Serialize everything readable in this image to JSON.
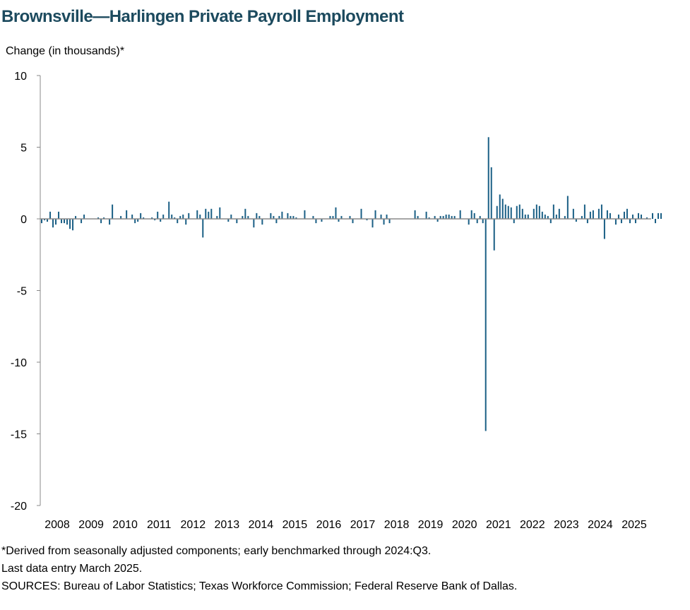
{
  "title": "Brownsville—Harlingen Private Payroll Employment",
  "chart_data": {
    "type": "bar",
    "title": "Brownsville—Harlingen Private Payroll Employment",
    "ylabel": "Change (in thousands)*",
    "xlabel": "",
    "ylim": [
      -20,
      10
    ],
    "yticks": [
      "10",
      "5",
      "0",
      "-5",
      "-10",
      "-15",
      "-20"
    ],
    "ytick_values": [
      10,
      5,
      0,
      -5,
      -10,
      -15,
      -20
    ],
    "xticks": [
      "2008",
      "2009",
      "2010",
      "2011",
      "2012",
      "2013",
      "2014",
      "2015",
      "2016",
      "2017",
      "2018",
      "2019",
      "2020",
      "2021",
      "2022",
      "2023",
      "2024",
      "2025"
    ],
    "frequency": "monthly",
    "start": "2008-01",
    "end": "2025-03",
    "bar_color": "#1a5f85",
    "grid": false,
    "values": [
      -0.3,
      -0.1,
      -0.2,
      0.5,
      -0.6,
      -0.4,
      0.5,
      -0.3,
      -0.3,
      -0.4,
      -0.7,
      -0.8,
      0.2,
      0.0,
      -0.3,
      0.3,
      0.0,
      0.0,
      0.0,
      0.0,
      0.1,
      -0.3,
      0.1,
      0.0,
      -0.4,
      1.0,
      0.0,
      0.0,
      0.2,
      0.0,
      0.6,
      0.0,
      0.3,
      -0.3,
      -0.2,
      0.4,
      0.1,
      0.0,
      0.0,
      0.1,
      -0.1,
      0.5,
      -0.2,
      0.3,
      0.0,
      1.2,
      0.3,
      0.1,
      -0.3,
      0.2,
      0.3,
      -0.4,
      0.4,
      0.0,
      0.0,
      0.6,
      0.3,
      -1.3,
      0.7,
      0.5,
      0.7,
      0.0,
      0.2,
      0.8,
      0.0,
      0.0,
      -0.2,
      0.3,
      0.0,
      -0.3,
      0.0,
      0.2,
      0.7,
      0.2,
      0.0,
      -0.6,
      0.4,
      0.2,
      -0.4,
      0.0,
      0.0,
      0.4,
      0.2,
      -0.3,
      0.2,
      0.5,
      0.0,
      0.4,
      0.2,
      0.2,
      0.1,
      0.0,
      0.0,
      0.6,
      0.0,
      0.0,
      0.2,
      -0.3,
      0.0,
      -0.2,
      0.0,
      0.0,
      0.2,
      0.2,
      0.8,
      -0.2,
      0.2,
      0.0,
      0.0,
      0.2,
      -0.3,
      0.0,
      0.0,
      0.7,
      0.0,
      -0.1,
      0.0,
      -0.6,
      0.6,
      0.0,
      0.3,
      -0.4,
      0.3,
      -0.3,
      0.0,
      0.0,
      0.0,
      0.0,
      0.0,
      0.0,
      0.0,
      0.0,
      0.6,
      0.2,
      0.0,
      0.0,
      0.5,
      0.1,
      0.0,
      0.2,
      -0.2,
      0.2,
      0.2,
      0.3,
      0.3,
      0.2,
      0.2,
      0.0,
      0.6,
      0.0,
      0.0,
      -0.4,
      0.6,
      0.4,
      -0.3,
      0.2,
      -0.3,
      -14.8,
      5.7,
      3.6,
      -2.2,
      0.9,
      1.7,
      1.4,
      1.0,
      0.9,
      0.8,
      -0.3,
      0.9,
      1.0,
      0.7,
      0.3,
      0.3,
      0.0,
      0.7,
      1.0,
      0.9,
      0.5,
      0.3,
      0.2,
      -0.3,
      1.0,
      0.3,
      0.7,
      0.0,
      0.2,
      1.6,
      0.0,
      0.7,
      -0.2,
      0.0,
      0.2,
      1.0,
      -0.3,
      0.5,
      0.6,
      0.0,
      0.7,
      1.0,
      -1.4,
      0.6,
      0.4,
      0.0,
      -0.4,
      0.3,
      -0.3,
      0.5,
      0.7,
      -0.3,
      0.3,
      -0.3,
      0.4,
      0.3,
      0.0,
      0.1,
      0.0,
      0.4,
      -0.3,
      0.4,
      0.4
    ]
  },
  "notes": {
    "footnote": "*Derived from seasonally adjusted components; early benchmarked through 2024:Q3.",
    "last_entry": "Last data entry March 2025.",
    "sources": "SOURCES: Bureau of Labor Statistics; Texas Workforce Commission; Federal Reserve Bank of Dallas."
  }
}
